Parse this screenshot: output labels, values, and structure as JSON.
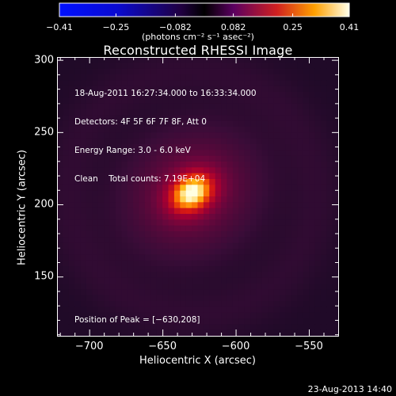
{
  "chart_data": {
    "type": "heatmap",
    "title": "Reconstructed RHESSI Image",
    "xlabel": "Heliocentric X (arcsec)",
    "ylabel": "Heliocentric Y (arcsec)",
    "xlim": [
      -722,
      -530
    ],
    "ylim": [
      109,
      302
    ],
    "xticks": [
      -700,
      -650,
      -600,
      -550
    ],
    "yticks": [
      150,
      200,
      250,
      300
    ],
    "xtick_labels": [
      "−700",
      "−650",
      "−600",
      "−550"
    ],
    "ytick_labels": [
      "150",
      "200",
      "250",
      "300"
    ],
    "colorbar": {
      "range": [
        -0.41,
        0.41
      ],
      "tick_labels": [
        "−0.41",
        "−0.25",
        "−0.082",
        "0.082",
        "0.25",
        "0.41"
      ],
      "tick_values": [
        -0.41,
        -0.25,
        -0.082,
        0.082,
        0.25,
        0.41
      ],
      "unit": "(photons cm⁻² s⁻¹ asec⁻²)"
    },
    "peak": {
      "x": -630,
      "y": 208,
      "value": 0.41
    },
    "info_lines": [
      "18-Aug-2011 16:27:34.000 to 16:33:34.000",
      "Detectors: 4F 5F 6F 7F 8F, Att 0",
      "Energy Range: 3.0 - 6.0 keV",
      "Clean    Total counts: 7.19E+04"
    ],
    "peak_label": "Position of Peak = [−630,208]"
  },
  "footer": {
    "timestamp": "23-Aug-2013 14:40"
  },
  "colors": {
    "background": "#000000",
    "axis": "#ffffff"
  }
}
